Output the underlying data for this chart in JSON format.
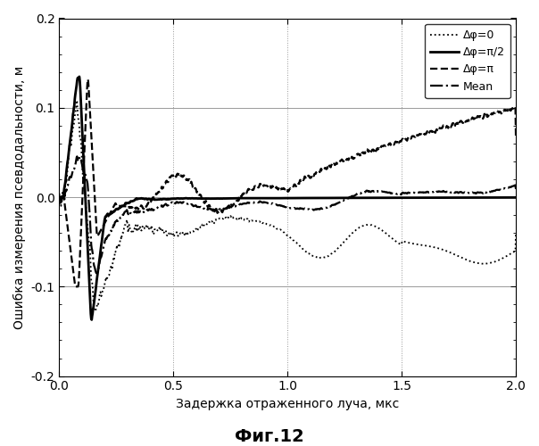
{
  "xlabel": "Задержка отраженного луча, мкс",
  "ylabel": "Ошибка измерения псевдодальности, м",
  "fig_label": "Фиг.12",
  "xlim": [
    0.0,
    2.0
  ],
  "ylim": [
    -0.2,
    0.2
  ],
  "xticks": [
    0.0,
    0.5,
    1.0,
    1.5,
    2.0
  ],
  "yticks": [
    -0.2,
    -0.1,
    0.0,
    0.1,
    0.2
  ],
  "legend_labels": [
    "Δφ=0",
    "Δφ=π/2",
    "Δφ=π",
    "Mean"
  ],
  "background_color": "#ffffff"
}
